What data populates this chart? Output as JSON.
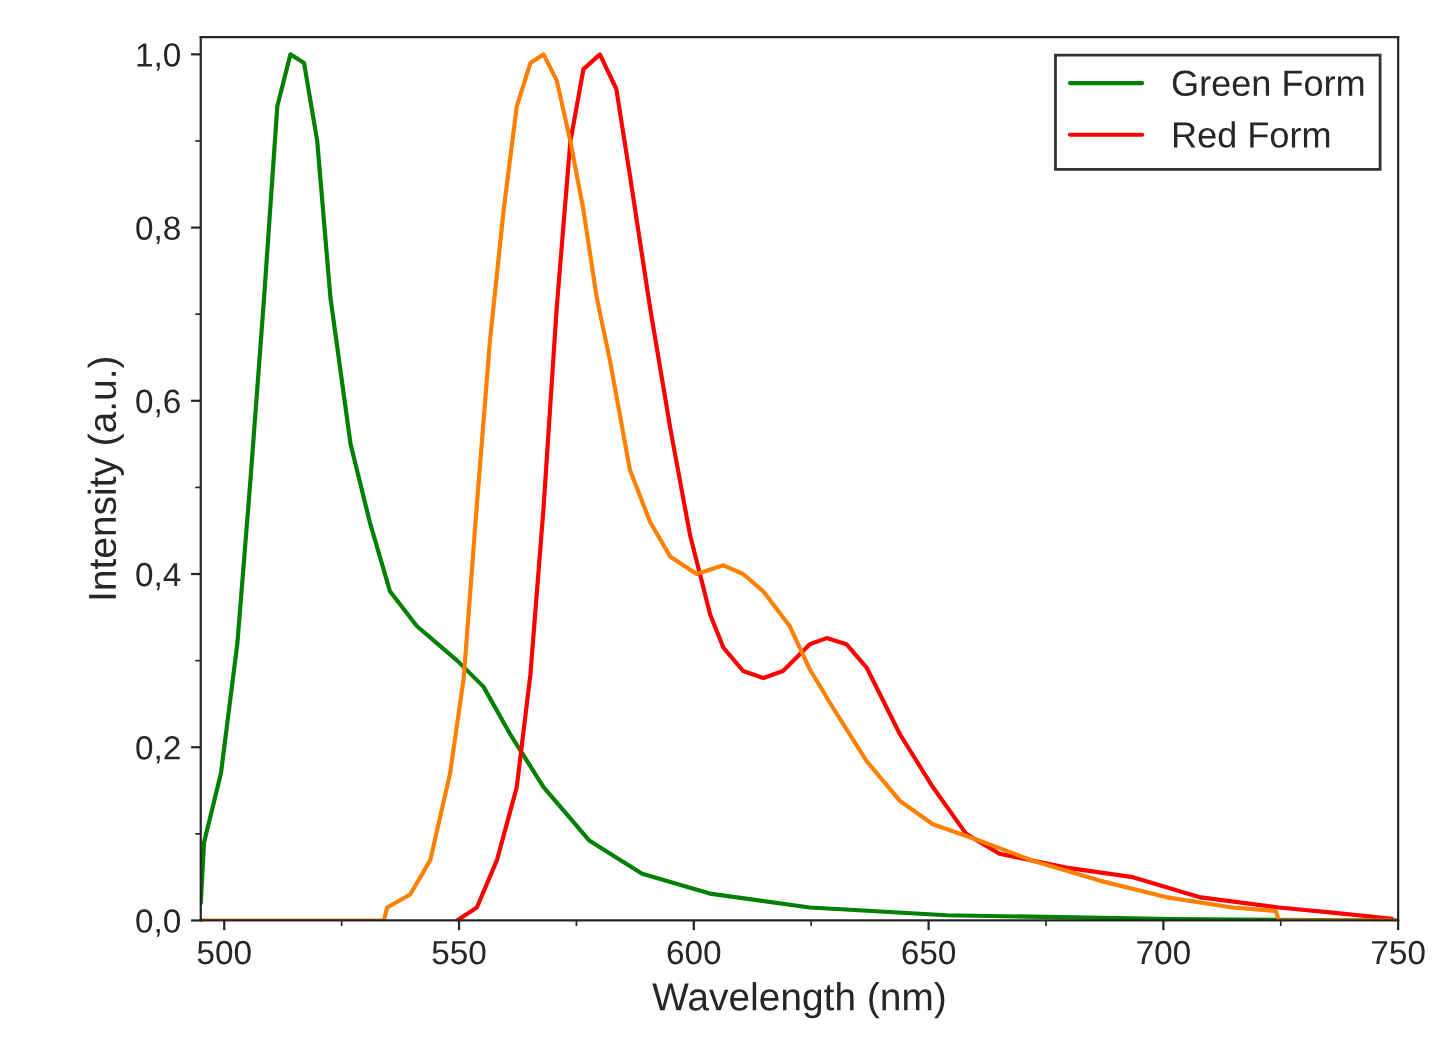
{
  "chart_data": {
    "type": "line",
    "xlabel": "Wavelength (nm)",
    "ylabel": "Intensity (a.u.)",
    "xlim": [
      495,
      750
    ],
    "xticks": [
      500,
      550,
      600,
      650,
      700,
      750
    ],
    "ylim": [
      0,
      1.02
    ],
    "yticks": [
      {
        "value": 0,
        "label": "0,0"
      },
      {
        "value": 0.2,
        "label": "0,2"
      },
      {
        "value": 0.4,
        "label": "0,4"
      },
      {
        "value": 0.6,
        "label": "0,6"
      },
      {
        "value": 0.8,
        "label": "0,8"
      },
      {
        "value": 1.0,
        "label": "1,0"
      }
    ],
    "grid": false,
    "legend": "top right",
    "line_style": "solid",
    "marker": "none",
    "series": [
      {
        "name": "Green Form",
        "color": "#008000",
        "x": [
          495,
          495.7,
          499.3,
          502.8,
          505.6,
          508.5,
          511.3,
          514.1,
          517,
          519.8,
          522.6,
          526.9,
          531,
          535.3,
          541,
          549.6,
          555.2,
          560.9,
          568,
          577.8,
          589,
          603.4,
          624.7,
          653.9,
          702,
          750
        ],
        "values": [
          0.02,
          0.09,
          0.17,
          0.32,
          0.51,
          0.72,
          0.94,
          1.0,
          0.99,
          0.9,
          0.72,
          0.55,
          0.46,
          0.38,
          0.34,
          0.3,
          0.27,
          0.215,
          0.154,
          0.092,
          0.054,
          0.031,
          0.015,
          0.006,
          0.0015,
          0.0
        ]
      },
      {
        "name": "Red Form",
        "color": "#ff0000",
        "x": [
          549.6,
          553.8,
          558.1,
          562.3,
          565.2,
          568,
          570.8,
          573.7,
          576.5,
          580,
          583.5,
          586.4,
          590.7,
          595,
          599.2,
          603.5,
          606.3,
          610.5,
          614.8,
          619,
          624.7,
          628.3,
          632.5,
          636.8,
          643.9,
          650.9,
          658,
          665.1,
          679.3,
          693.5,
          707.6,
          724.6,
          736,
          748.7
        ],
        "values": [
          0,
          0.015,
          0.07,
          0.154,
          0.284,
          0.476,
          0.707,
          0.899,
          0.983,
          1.0,
          0.96,
          0.86,
          0.707,
          0.568,
          0.445,
          0.353,
          0.315,
          0.288,
          0.28,
          0.288,
          0.319,
          0.326,
          0.319,
          0.292,
          0.215,
          0.154,
          0.1,
          0.077,
          0.061,
          0.05,
          0.027,
          0.015,
          0.009,
          0.002
        ]
      },
      {
        "color": "#ff8000",
        "x": [
          495,
          534,
          534.7,
          539.6,
          543.9,
          548.1,
          551,
          553.8,
          556.6,
          559.5,
          562.3,
          565.2,
          568,
          570.8,
          573.7,
          576.5,
          579.3,
          582.2,
          586.4,
          590.7,
          595,
          600.6,
          606.3,
          610.5,
          614.8,
          620.4,
          624.7,
          629.7,
          636.8,
          643.9,
          650.9,
          660.9,
          672.2,
          686.4,
          700.5,
          714.7,
          723.9,
          724.6,
          750
        ],
        "values": [
          0,
          0,
          0.015,
          0.03,
          0.07,
          0.17,
          0.28,
          0.48,
          0.67,
          0.82,
          0.94,
          0.99,
          1.0,
          0.97,
          0.9,
          0.82,
          0.72,
          0.645,
          0.52,
          0.46,
          0.42,
          0.4,
          0.41,
          0.4,
          0.38,
          0.34,
          0.29,
          0.245,
          0.184,
          0.138,
          0.111,
          0.092,
          0.069,
          0.046,
          0.027,
          0.015,
          0.011,
          0,
          0
        ]
      }
    ]
  }
}
